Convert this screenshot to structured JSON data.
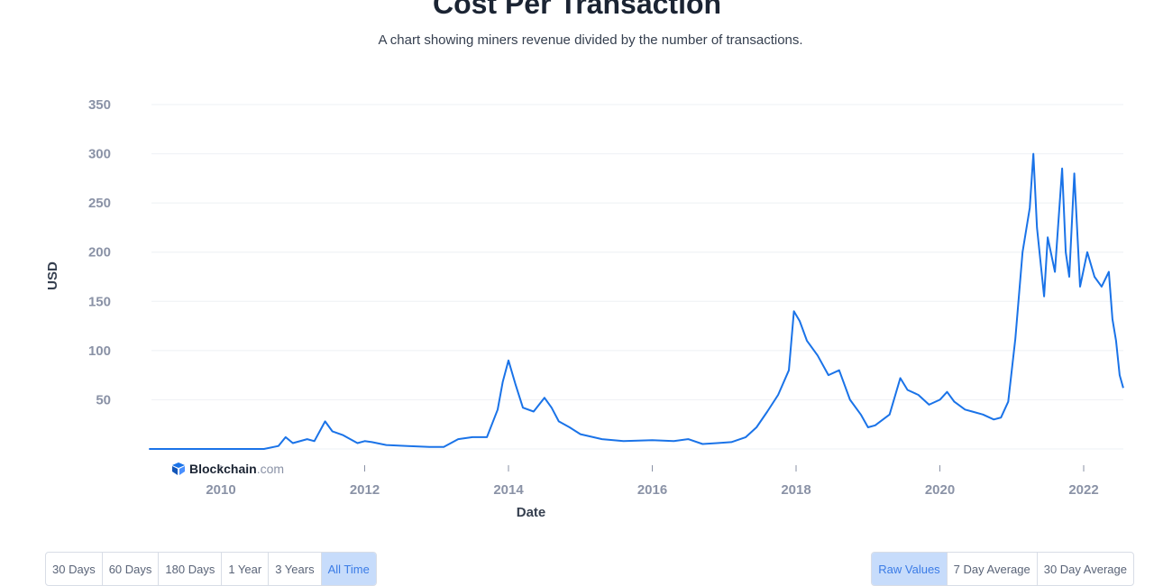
{
  "header": {
    "title": "Cost Per Transaction",
    "subtitle": "A chart showing miners revenue divided by the number of transactions."
  },
  "watermark": {
    "name": "Blockchain",
    "domain": ".com",
    "icon": "blockchain-cube-icon"
  },
  "range_buttons": [
    {
      "label": "30 Days",
      "active": false
    },
    {
      "label": "60 Days",
      "active": false
    },
    {
      "label": "180 Days",
      "active": false
    },
    {
      "label": "1 Year",
      "active": false
    },
    {
      "label": "3 Years",
      "active": false
    },
    {
      "label": "All Time",
      "active": true
    }
  ],
  "smoothing_buttons": [
    {
      "label": "Raw Values",
      "active": true
    },
    {
      "label": "7 Day Average",
      "active": false
    },
    {
      "label": "30 Day Average",
      "active": false
    }
  ],
  "colors": {
    "line": "#1a73e8",
    "active_bg": "#c7dcfb",
    "active_text": "#3a7be6"
  },
  "chart_data": {
    "type": "line",
    "xlabel": "Date",
    "ylabel": "USD",
    "xlim": [
      2009.0,
      2022.6
    ],
    "ylim": [
      0,
      350
    ],
    "yticks": [
      50,
      100,
      150,
      200,
      250,
      300,
      350
    ],
    "xticks": [
      2010,
      2012,
      2014,
      2016,
      2018,
      2020,
      2022
    ],
    "grid": true,
    "series": [
      {
        "x": [
          2009.0,
          2010.6,
          2010.8,
          2010.9,
          2011.0,
          2011.2,
          2011.3,
          2011.45,
          2011.55,
          2011.7,
          2011.9,
          2012.0,
          2012.1,
          2012.3,
          2012.6,
          2012.9,
          2013.1,
          2013.3,
          2013.5,
          2013.7,
          2013.85,
          2013.92,
          2014.0,
          2014.1,
          2014.2,
          2014.35,
          2014.5,
          2014.6,
          2014.7,
          2014.85,
          2015.0,
          2015.3,
          2015.6,
          2016.0,
          2016.3,
          2016.5,
          2016.7,
          2016.9,
          2017.1,
          2017.3,
          2017.45,
          2017.6,
          2017.75,
          2017.9,
          2017.97,
          2018.05,
          2018.15,
          2018.3,
          2018.45,
          2018.6,
          2018.75,
          2018.9,
          2019.0,
          2019.1,
          2019.3,
          2019.45,
          2019.55,
          2019.7,
          2019.85,
          2020.0,
          2020.1,
          2020.2,
          2020.35,
          2020.45,
          2020.6,
          2020.75,
          2020.85,
          2020.95,
          2021.05,
          2021.15,
          2021.25,
          2021.3,
          2021.35,
          2021.45,
          2021.5,
          2021.6,
          2021.7,
          2021.75,
          2021.8,
          2021.87,
          2021.95,
          2022.05,
          2022.15,
          2022.25,
          2022.35,
          2022.4,
          2022.45,
          2022.5,
          2022.55
        ],
        "y": [
          0,
          0,
          3,
          12,
          6,
          10,
          8,
          28,
          18,
          14,
          6,
          8,
          7,
          4,
          3,
          2,
          2,
          10,
          12,
          12,
          40,
          68,
          90,
          65,
          42,
          38,
          52,
          42,
          28,
          22,
          15,
          10,
          8,
          9,
          8,
          10,
          5,
          6,
          7,
          12,
          22,
          38,
          55,
          80,
          140,
          130,
          110,
          95,
          75,
          80,
          50,
          35,
          22,
          24,
          35,
          72,
          60,
          55,
          45,
          50,
          58,
          48,
          40,
          38,
          35,
          30,
          32,
          48,
          112,
          200,
          245,
          300,
          225,
          155,
          215,
          180,
          285,
          200,
          175,
          280,
          165,
          200,
          175,
          165,
          180,
          132,
          110,
          75,
          62
        ]
      }
    ]
  }
}
